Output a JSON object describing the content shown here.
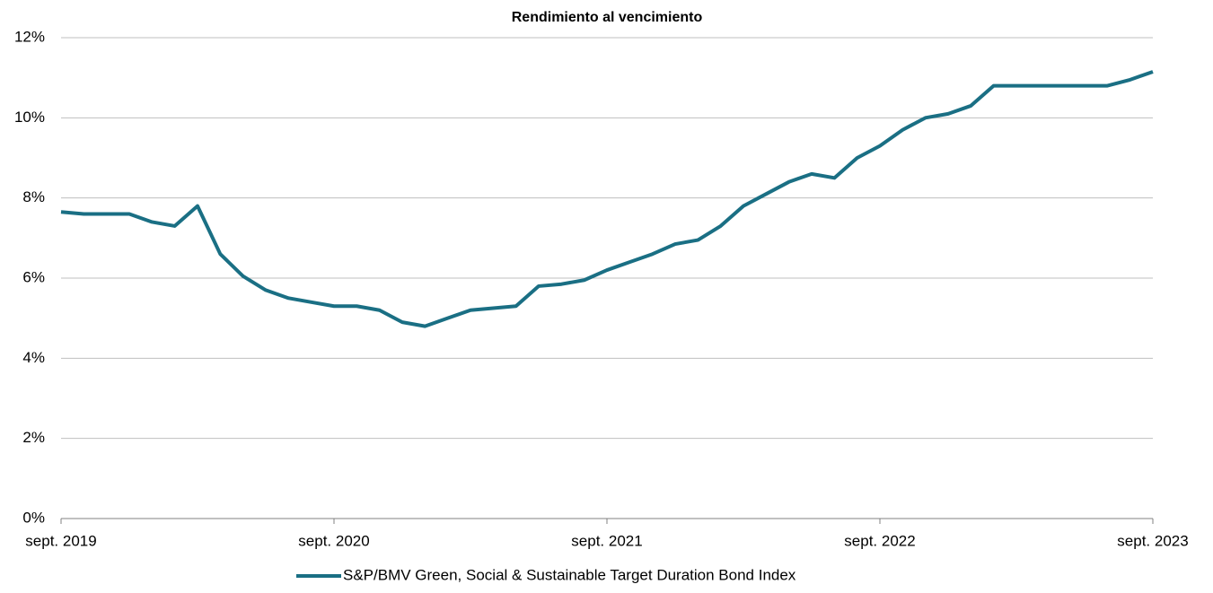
{
  "chart_data": {
    "type": "line",
    "title": "Rendimiento al vencimiento",
    "x": [
      "2019-09",
      "2019-10",
      "2019-11",
      "2019-12",
      "2020-01",
      "2020-02",
      "2020-03",
      "2020-04",
      "2020-05",
      "2020-06",
      "2020-07",
      "2020-08",
      "2020-09",
      "2020-10",
      "2020-11",
      "2020-12",
      "2021-01",
      "2021-02",
      "2021-03",
      "2021-04",
      "2021-05",
      "2021-06",
      "2021-07",
      "2021-08",
      "2021-09",
      "2021-10",
      "2021-11",
      "2021-12",
      "2022-01",
      "2022-02",
      "2022-03",
      "2022-04",
      "2022-05",
      "2022-06",
      "2022-07",
      "2022-08",
      "2022-09",
      "2022-10",
      "2022-11",
      "2022-12",
      "2023-01",
      "2023-02",
      "2023-03",
      "2023-04",
      "2023-05",
      "2023-06",
      "2023-07",
      "2023-08",
      "2023-09"
    ],
    "series": [
      {
        "name": "S&P/BMV Green, Social & Sustainable Target Duration Bond Index",
        "color": "#1a6f84",
        "values": [
          7.65,
          7.6,
          7.6,
          7.6,
          7.4,
          7.3,
          7.8,
          6.6,
          6.05,
          5.7,
          5.5,
          5.4,
          5.3,
          5.3,
          5.2,
          4.9,
          4.8,
          5.0,
          5.2,
          5.25,
          5.3,
          5.8,
          5.85,
          5.95,
          6.2,
          6.4,
          6.6,
          6.85,
          6.95,
          7.3,
          7.8,
          8.1,
          8.4,
          8.6,
          8.5,
          9.0,
          9.3,
          9.7,
          10.0,
          10.1,
          10.3,
          10.8,
          10.8,
          10.8,
          10.8,
          10.8,
          10.8,
          10.95,
          11.15
        ]
      }
    ],
    "ylim": [
      0,
      12
    ],
    "yticks": [
      {
        "value": 0,
        "label": "0%"
      },
      {
        "value": 2,
        "label": "2%"
      },
      {
        "value": 4,
        "label": "4%"
      },
      {
        "value": 6,
        "label": "6%"
      },
      {
        "value": 8,
        "label": "8%"
      },
      {
        "value": 10,
        "label": "10%"
      },
      {
        "value": 12,
        "label": "12%"
      }
    ],
    "xlim": [
      "2019-09",
      "2023-09"
    ],
    "xticks": [
      {
        "value": "2019-09",
        "label": "sept. 2019"
      },
      {
        "value": "2020-09",
        "label": "sept. 2020"
      },
      {
        "value": "2021-09",
        "label": "sept. 2021"
      },
      {
        "value": "2022-09",
        "label": "sept. 2022"
      },
      {
        "value": "2023-09",
        "label": "sept. 2023"
      }
    ],
    "grid": true,
    "legend": "bottom"
  }
}
